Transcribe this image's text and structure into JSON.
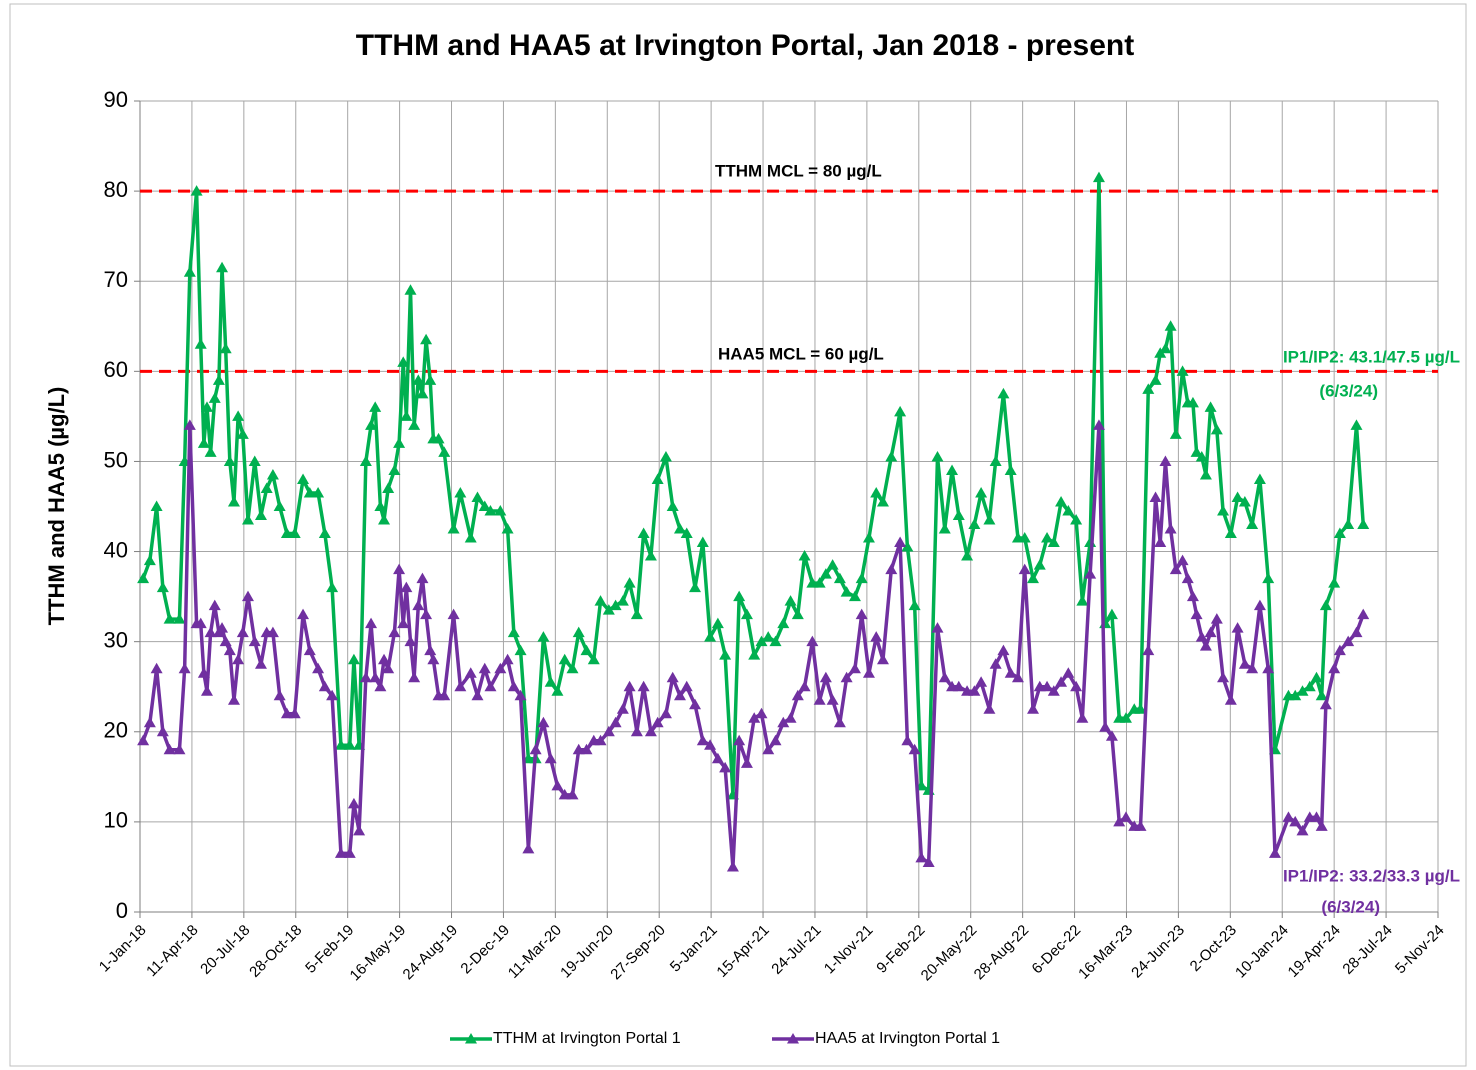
{
  "chart_data": {
    "type": "line",
    "title": "TTHM and HAA5 at Irvington Portal, Jan 2018 - present",
    "y_label": "TTHM and HAA5 (µg/L)",
    "xlim": [
      "2018-01-01",
      "2024-11-05"
    ],
    "xticks": [
      {
        "value": "2018-01-01",
        "label": "1-Jan-18"
      },
      {
        "value": "2018-04-11",
        "label": "11-Apr-18"
      },
      {
        "value": "2018-07-20",
        "label": "20-Jul-18"
      },
      {
        "value": "2018-10-28",
        "label": "28-Oct-18"
      },
      {
        "value": "2019-02-05",
        "label": "5-Feb-19"
      },
      {
        "value": "2019-05-16",
        "label": "16-May-19"
      },
      {
        "value": "2019-08-24",
        "label": "24-Aug-19"
      },
      {
        "value": "2019-12-02",
        "label": "2-Dec-19"
      },
      {
        "value": "2020-03-11",
        "label": "11-Mar-20"
      },
      {
        "value": "2020-06-19",
        "label": "19-Jun-20"
      },
      {
        "value": "2020-09-27",
        "label": "27-Sep-20"
      },
      {
        "value": "2021-01-05",
        "label": "5-Jan-21"
      },
      {
        "value": "2021-04-15",
        "label": "15-Apr-21"
      },
      {
        "value": "2021-07-24",
        "label": "24-Jul-21"
      },
      {
        "value": "2021-11-01",
        "label": "1-Nov-21"
      },
      {
        "value": "2022-02-09",
        "label": "9-Feb-22"
      },
      {
        "value": "2022-05-20",
        "label": "20-May-22"
      },
      {
        "value": "2022-08-28",
        "label": "28-Aug-22"
      },
      {
        "value": "2022-12-06",
        "label": "6-Dec-22"
      },
      {
        "value": "2023-03-16",
        "label": "16-Mar-23"
      },
      {
        "value": "2023-06-24",
        "label": "24-Jun-23"
      },
      {
        "value": "2023-10-02",
        "label": "2-Oct-23"
      },
      {
        "value": "2024-01-10",
        "label": "10-Jan-24"
      },
      {
        "value": "2024-04-19",
        "label": "19-Apr-24"
      },
      {
        "value": "2024-07-28",
        "label": "28-Jul-24"
      },
      {
        "value": "2024-11-05",
        "label": "5-Nov-24"
      }
    ],
    "ylim": [
      0,
      90
    ],
    "yticks": [
      0,
      10,
      20,
      30,
      40,
      50,
      60,
      70,
      80,
      90
    ],
    "grid": true,
    "legend": "bottom",
    "x": [
      "2018-01-07",
      "2018-01-20",
      "2018-02-02",
      "2018-02-14",
      "2018-02-27",
      "2018-03-18",
      "2018-03-28",
      "2018-04-07",
      "2018-04-20",
      "2018-04-28",
      "2018-05-04",
      "2018-05-10",
      "2018-05-17",
      "2018-05-25",
      "2018-06-02",
      "2018-06-08",
      "2018-06-15",
      "2018-06-23",
      "2018-07-01",
      "2018-07-09",
      "2018-07-18",
      "2018-07-28",
      "2018-08-10",
      "2018-08-22",
      "2018-09-02",
      "2018-09-14",
      "2018-09-27",
      "2018-10-11",
      "2018-10-26",
      "2018-11-11",
      "2018-11-24",
      "2018-12-10",
      "2018-12-23",
      "2019-01-06",
      "2019-01-23",
      "2019-02-09",
      "2019-02-17",
      "2019-02-27",
      "2019-03-12",
      "2019-03-22",
      "2019-03-30",
      "2019-04-09",
      "2019-04-16",
      "2019-04-24",
      "2019-05-06",
      "2019-05-15",
      "2019-05-23",
      "2019-05-29",
      "2019-06-06",
      "2019-06-13",
      "2019-06-21",
      "2019-06-29",
      "2019-07-06",
      "2019-07-14",
      "2019-07-20",
      "2019-07-30",
      "2019-08-10",
      "2019-08-28",
      "2019-09-10",
      "2019-09-30",
      "2019-10-13",
      "2019-10-27",
      "2019-11-07",
      "2019-11-26",
      "2019-12-10",
      "2019-12-22",
      "2020-01-04",
      "2020-01-19",
      "2020-02-02",
      "2020-02-17",
      "2020-03-02",
      "2020-03-15",
      "2020-03-29",
      "2020-04-13",
      "2020-04-25",
      "2020-05-10",
      "2020-05-24",
      "2020-06-06",
      "2020-06-22",
      "2020-07-05",
      "2020-07-19",
      "2020-08-01",
      "2020-08-15",
      "2020-08-28",
      "2020-09-11",
      "2020-09-24",
      "2020-10-10",
      "2020-10-23",
      "2020-11-06",
      "2020-11-19",
      "2020-12-05",
      "2020-12-20",
      "2021-01-03",
      "2021-01-18",
      "2021-02-01",
      "2021-02-16",
      "2021-02-28",
      "2021-03-15",
      "2021-03-29",
      "2021-04-12",
      "2021-04-25",
      "2021-05-09",
      "2021-05-24",
      "2021-06-07",
      "2021-06-21",
      "2021-07-04",
      "2021-07-19",
      "2021-08-02",
      "2021-08-14",
      "2021-08-27",
      "2021-09-10",
      "2021-09-23",
      "2021-10-09",
      "2021-10-22",
      "2021-11-05",
      "2021-11-19",
      "2021-12-02",
      "2021-12-18",
      "2022-01-04",
      "2022-01-18",
      "2022-02-01",
      "2022-02-14",
      "2022-02-28",
      "2022-03-17",
      "2022-03-31",
      "2022-04-14",
      "2022-04-27",
      "2022-05-13",
      "2022-05-27",
      "2022-06-09",
      "2022-06-25",
      "2022-07-07",
      "2022-07-22",
      "2022-08-05",
      "2022-08-19",
      "2022-09-01",
      "2022-09-17",
      "2022-09-30",
      "2022-10-14",
      "2022-10-27",
      "2022-11-10",
      "2022-11-24",
      "2022-12-09",
      "2022-12-21",
      "2023-01-05",
      "2023-01-22",
      "2023-02-03",
      "2023-02-16",
      "2023-03-02",
      "2023-03-15",
      "2023-03-31",
      "2023-04-12",
      "2023-04-27",
      "2023-05-11",
      "2023-05-20",
      "2023-05-30",
      "2023-06-09",
      "2023-06-19",
      "2023-07-02",
      "2023-07-12",
      "2023-07-22",
      "2023-07-29",
      "2023-08-08",
      "2023-08-16",
      "2023-08-25",
      "2023-09-06",
      "2023-09-18",
      "2023-10-03",
      "2023-10-16",
      "2023-10-30",
      "2023-11-13",
      "2023-11-28",
      "2023-12-14",
      "2023-12-27",
      "2024-01-22",
      "2024-02-04",
      "2024-02-18",
      "2024-03-03",
      "2024-03-16",
      "2024-03-26",
      "2024-04-03",
      "2024-04-19",
      "2024-04-30",
      "2024-05-16",
      "2024-06-01",
      "2024-06-14"
    ],
    "series": [
      {
        "name": "TTHM at Irvington Portal 1",
        "color": "#00b050",
        "values": [
          37,
          39,
          45,
          36,
          32.5,
          32.5,
          50,
          71,
          80,
          63,
          52,
          56,
          51,
          57,
          59,
          71.5,
          62.5,
          50,
          45.5,
          55,
          53,
          43.5,
          50,
          44,
          47,
          48.5,
          45,
          42,
          42,
          48,
          46.5,
          46.5,
          42,
          36,
          18.5,
          18.5,
          28,
          18.5,
          50,
          54,
          56,
          45,
          43.5,
          47,
          49,
          52,
          61,
          55,
          69,
          54,
          59,
          57.5,
          63.5,
          59,
          52.5,
          52.5,
          51,
          42.5,
          46.5,
          41.5,
          46,
          45,
          44.5,
          44.5,
          42.5,
          31,
          29,
          17,
          17,
          30.5,
          25.5,
          24.5,
          28,
          27,
          31,
          29,
          28,
          34.5,
          33.5,
          34,
          34.5,
          36.5,
          33,
          42,
          39.5,
          48,
          50.5,
          45,
          42.5,
          42,
          36,
          41,
          30.5,
          32,
          28.5,
          13,
          35,
          33,
          28.5,
          30,
          30.5,
          30,
          32,
          34.5,
          33,
          39.5,
          36.5,
          36.5,
          37.5,
          38.5,
          37,
          35.5,
          35,
          37,
          41.5,
          46.5,
          45.5,
          50.5,
          55.5,
          40.5,
          34,
          14,
          13.5,
          50.5,
          42.5,
          49,
          44,
          39.5,
          43,
          46.5,
          43.5,
          50,
          57.5,
          49,
          41.5,
          41.5,
          37,
          38.5,
          41.5,
          41,
          45.5,
          44.5,
          43.5,
          34.5,
          41,
          81.5,
          32,
          33,
          21.5,
          21.5,
          22.5,
          22.5,
          58,
          59,
          62,
          62.5,
          65,
          53,
          60,
          56.5,
          56.5,
          51,
          50.5,
          48.5,
          56,
          53.5,
          44.5,
          42,
          46,
          45.5,
          43,
          48,
          37,
          18,
          24,
          24,
          24.5,
          25,
          26,
          24,
          34,
          36.5,
          42,
          43,
          54,
          43
        ]
      },
      {
        "name": "HAA5 at Irvington Portal 1",
        "color": "#7030a0",
        "values": [
          19,
          21,
          27,
          20,
          18,
          18,
          27,
          54,
          32,
          32,
          26.5,
          24.5,
          31,
          34,
          31,
          31.5,
          30,
          29,
          23.5,
          28,
          31,
          35,
          30,
          27.5,
          31,
          31,
          24,
          22,
          22,
          33,
          29,
          27,
          25,
          24,
          6.5,
          6.5,
          12,
          9,
          26,
          32,
          26,
          25,
          28,
          27,
          31,
          38,
          32,
          36,
          30,
          26,
          34,
          37,
          33,
          29,
          28,
          24,
          24,
          33,
          25,
          26.5,
          24,
          27,
          25,
          27,
          28,
          25,
          24,
          7,
          18,
          21,
          17,
          14,
          13,
          13,
          18,
          18,
          19,
          19,
          20,
          21,
          22.5,
          25,
          20,
          25,
          20,
          21,
          22,
          26,
          24,
          25,
          23,
          19,
          18.5,
          17,
          16,
          5,
          19,
          16.5,
          21.5,
          22,
          18,
          19,
          21,
          21.5,
          24,
          25,
          30,
          23.5,
          26,
          23.5,
          21,
          26,
          27,
          33,
          26.5,
          30.5,
          28,
          38,
          41,
          19,
          18,
          6,
          5.5,
          31.5,
          26,
          25,
          25,
          24.5,
          24.5,
          25.5,
          22.5,
          27.5,
          29,
          26.5,
          26,
          38,
          22.5,
          25,
          25,
          24.5,
          25.5,
          26.5,
          25,
          21.5,
          37.5,
          54,
          20.5,
          19.5,
          10,
          10.5,
          9.5,
          9.5,
          29,
          46,
          41,
          50,
          42.5,
          38,
          39,
          37,
          35,
          33,
          30.5,
          29.5,
          31,
          32.5,
          26,
          23.5,
          31.5,
          27.5,
          27,
          34,
          27,
          6.5,
          10.5,
          10,
          9,
          10.5,
          10.5,
          9.5,
          23,
          27,
          29,
          30,
          31,
          33
        ]
      }
    ],
    "reference_lines": [
      {
        "value": 80,
        "color": "#ff0000"
      },
      {
        "value": 60,
        "color": "#ff0000"
      }
    ],
    "annotations": [
      {
        "text": "TTHM MCL = 80 µg/L",
        "color": "#000000"
      },
      {
        "text": "HAA5 MCL = 60 µg/L",
        "color": "#000000"
      },
      {
        "text": "IP1/IP2: 43.1/47.5 µg/L",
        "color": "#00b050"
      },
      {
        "text": "(6/3/24)",
        "color": "#00b050"
      },
      {
        "text": "IP1/IP2: 33.2/33.3 µg/L",
        "color": "#7030a0"
      },
      {
        "text": "(6/3/24)",
        "color": "#7030a0"
      }
    ]
  }
}
